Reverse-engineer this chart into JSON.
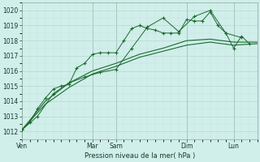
{
  "background_color": "#d0eeea",
  "plot_bg_color": "#d0eeea",
  "grid_major_color": "#b8d8d0",
  "grid_minor_color": "#c8e4de",
  "vline_color": "#5a7a6a",
  "line_color": "#1a6b2e",
  "title": "Pression niveau de la mer( hPa )",
  "ylim": [
    1011.5,
    1020.5
  ],
  "yticks": [
    1012,
    1013,
    1014,
    1015,
    1016,
    1017,
    1018,
    1019,
    1020
  ],
  "x_day_labels": [
    "Ven",
    "Mar",
    "Sam",
    "Dim",
    "Lun"
  ],
  "x_day_positions": [
    0,
    18,
    24,
    42,
    54
  ],
  "xlim": [
    0,
    60
  ],
  "series1_x": [
    0,
    2,
    4,
    6,
    8,
    10,
    12,
    14,
    16,
    18,
    20,
    22,
    24,
    26,
    28,
    30,
    32,
    34,
    36,
    38,
    40,
    42,
    44,
    46,
    48,
    50,
    52,
    54,
    56,
    58
  ],
  "series1_y": [
    1012.1,
    1012.6,
    1013.5,
    1014.2,
    1014.8,
    1015.0,
    1015.1,
    1016.2,
    1016.5,
    1017.1,
    1017.2,
    1017.2,
    1017.2,
    1018.0,
    1018.8,
    1019.0,
    1018.8,
    1018.7,
    1018.5,
    1018.5,
    1018.5,
    1019.4,
    1019.3,
    1019.3,
    1019.9,
    1019.0,
    1018.5,
    1017.5,
    1018.3,
    1017.8
  ],
  "series2_x": [
    0,
    6,
    12,
    18,
    24,
    30,
    36,
    42,
    48,
    54,
    60
  ],
  "series2_y": [
    1012.1,
    1013.8,
    1014.9,
    1015.8,
    1016.3,
    1016.9,
    1017.3,
    1017.7,
    1017.9,
    1017.7,
    1017.8
  ],
  "series3_x": [
    0,
    6,
    12,
    18,
    24,
    30,
    36,
    42,
    48,
    54,
    60
  ],
  "series3_y": [
    1012.1,
    1014.0,
    1015.2,
    1016.0,
    1016.5,
    1017.1,
    1017.5,
    1018.0,
    1018.1,
    1017.9,
    1017.9
  ],
  "series4_x": [
    0,
    4,
    8,
    12,
    16,
    20,
    24,
    28,
    32,
    36,
    40,
    44,
    48,
    52,
    56
  ],
  "series4_y": [
    1012.1,
    1013.0,
    1014.5,
    1015.2,
    1015.6,
    1015.9,
    1016.1,
    1017.5,
    1018.9,
    1019.5,
    1018.6,
    1019.6,
    1020.0,
    1018.5,
    1018.2
  ]
}
